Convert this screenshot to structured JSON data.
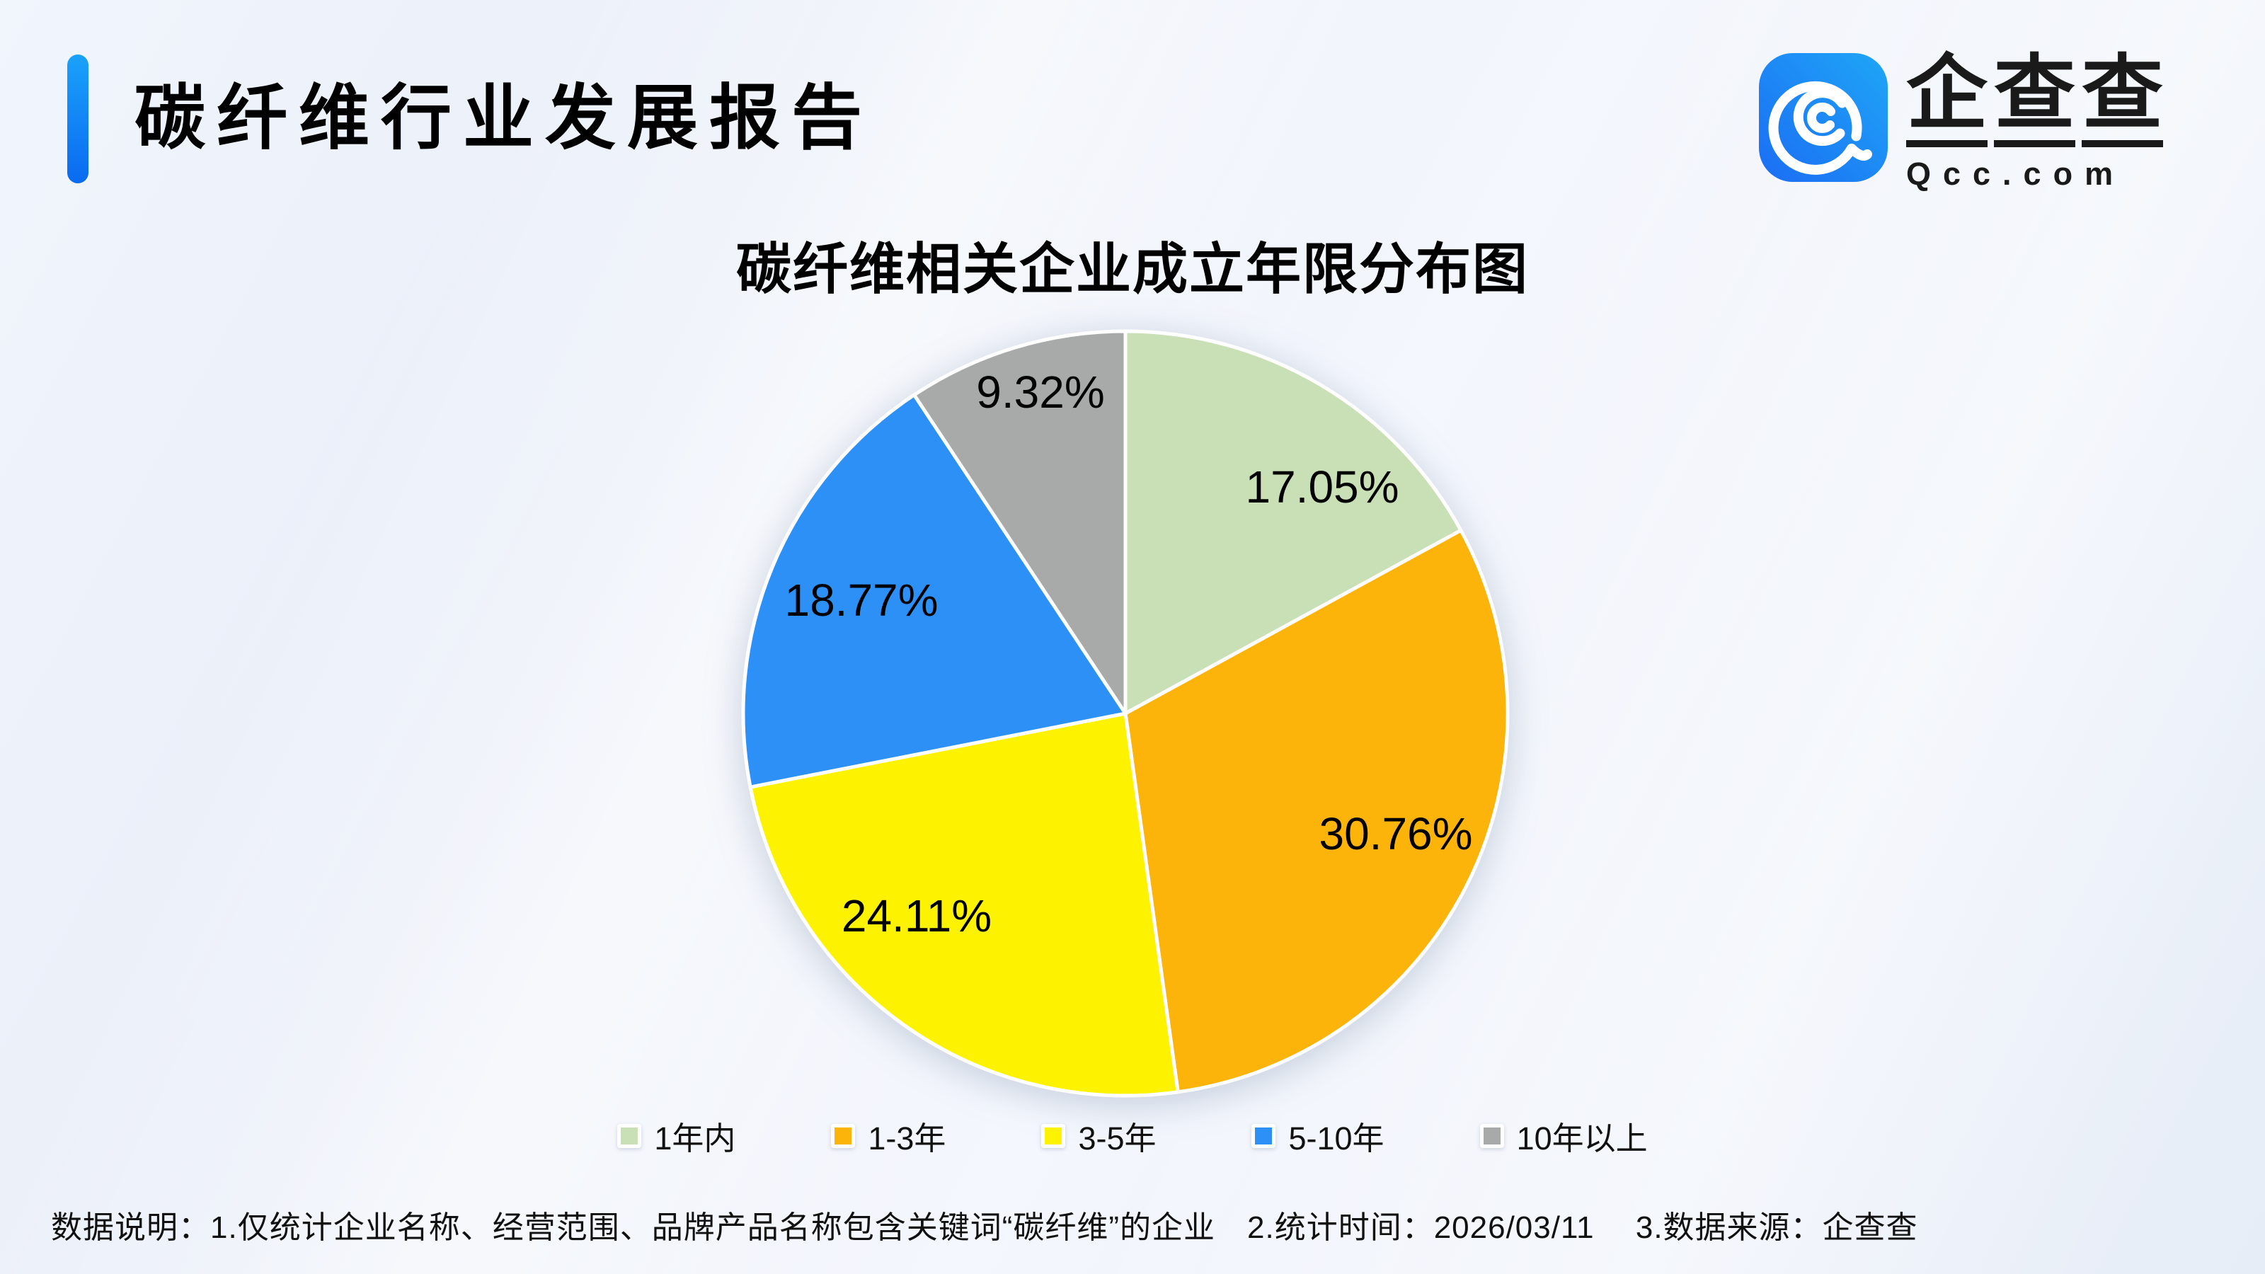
{
  "header": {
    "title": "碳纤维行业发展报告",
    "accent_color": "#0f7bf4"
  },
  "logo": {
    "brand_chars": [
      "企",
      "查",
      "查"
    ],
    "domain": "Qcc.com",
    "tile_color_left": "#1b6df3",
    "tile_color_right": "#1fa6f7"
  },
  "chart_data": {
    "type": "pie",
    "title": "碳纤维相关企业成立年限分布图",
    "categories": [
      "1年内",
      "1-3年",
      "3-5年",
      "5-10年",
      "10年以上"
    ],
    "values": [
      17.05,
      30.76,
      24.11,
      18.77,
      9.32
    ],
    "unit": "%",
    "colors": [
      "#c9dfb5",
      "#fcb30a",
      "#fdf301",
      "#2c90f6",
      "#a8a9a9"
    ],
    "start_angle_deg": 0,
    "direction": "clockwise",
    "labels_inside": true,
    "legend_position": "bottom"
  },
  "footnote": {
    "text": "数据说明：1.仅统计企业名称、经营范围、品牌产品名称包含关键词“碳纤维”的企业　2.统计时间：2026/03/11　 3.数据来源：企查查"
  }
}
